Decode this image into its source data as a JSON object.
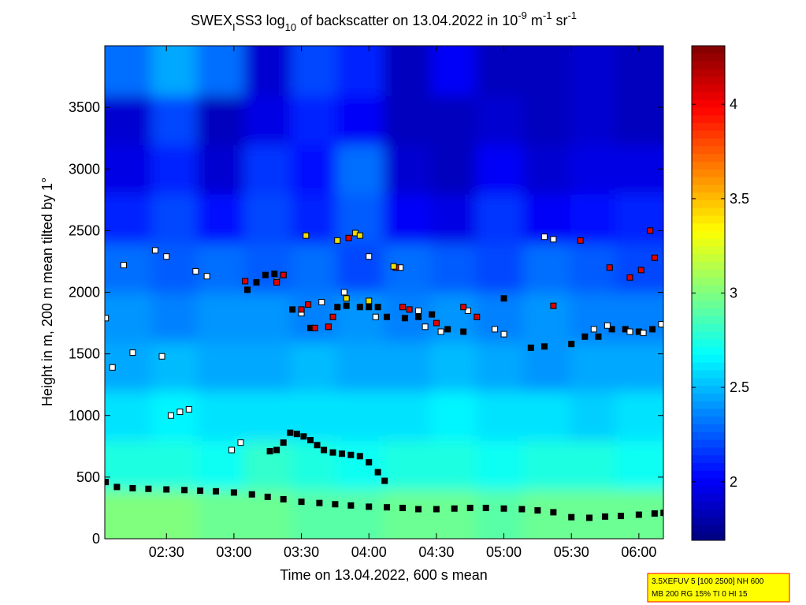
{
  "chart_data": {
    "type": "heatmap",
    "title_parts": [
      "SWEX",
      "I",
      "SS3 log",
      "10",
      " of backscatter on 13.04.2022 in 10",
      "-9",
      " m",
      "-1",
      " sr",
      "-1"
    ],
    "x_label": "Time on 13.04.2022, 600 s mean",
    "y_label": "Height in m, 200 m mean tilted by 1°",
    "xlim": [
      122.6,
      370.9
    ],
    "xticks": [
      {
        "value": 150,
        "label": "02:30"
      },
      {
        "value": 180,
        "label": "03:00"
      },
      {
        "value": 210,
        "label": "03:30"
      },
      {
        "value": 240,
        "label": "04:00"
      },
      {
        "value": 270,
        "label": "04:30"
      },
      {
        "value": 300,
        "label": "05:00"
      },
      {
        "value": 330,
        "label": "05:30"
      },
      {
        "value": 360,
        "label": "06:00"
      }
    ],
    "ylim": [
      0,
      4000
    ],
    "yticks": [
      0,
      500,
      1000,
      1500,
      2000,
      2500,
      3000,
      3500
    ],
    "clim": [
      1.69,
      4.31
    ],
    "cticks": [
      2,
      2.5,
      3,
      3.5,
      4
    ],
    "heat_x": [
      133,
      154,
      174,
      195,
      216,
      236,
      257,
      278,
      298,
      319,
      340,
      360
    ],
    "heat_y": [
      200,
      600,
      1000,
      1400,
      1800,
      2200,
      2600,
      3000,
      3400,
      3800
    ],
    "z": [
      [
        3.0,
        3.0,
        2.95,
        2.95,
        2.9,
        2.9,
        2.95,
        2.95,
        2.9,
        2.95,
        2.95,
        2.95
      ],
      [
        2.75,
        2.75,
        2.7,
        2.8,
        2.75,
        2.7,
        2.75,
        2.75,
        2.7,
        2.75,
        2.75,
        2.7
      ],
      [
        2.6,
        2.65,
        2.6,
        2.6,
        2.6,
        2.6,
        2.6,
        2.65,
        2.6,
        2.6,
        2.55,
        2.6
      ],
      [
        2.45,
        2.5,
        2.45,
        2.45,
        2.5,
        2.45,
        2.45,
        2.5,
        2.45,
        2.4,
        2.45,
        2.45
      ],
      [
        2.4,
        2.35,
        2.4,
        2.4,
        2.35,
        2.4,
        2.35,
        2.4,
        2.35,
        2.4,
        2.35,
        2.35
      ],
      [
        2.3,
        2.25,
        2.3,
        2.25,
        2.3,
        2.2,
        2.3,
        2.25,
        2.2,
        2.3,
        2.25,
        2.2
      ],
      [
        2.1,
        2.2,
        2.05,
        2.2,
        2.1,
        2.25,
        2.0,
        1.95,
        2.15,
        2.0,
        2.05,
        2.1
      ],
      [
        1.95,
        2.1,
        1.9,
        2.15,
        2.05,
        2.3,
        1.9,
        1.85,
        2.0,
        1.9,
        1.95,
        1.95
      ],
      [
        1.9,
        2.2,
        1.85,
        1.95,
        2.1,
        2.0,
        1.85,
        1.85,
        1.9,
        1.85,
        1.9,
        1.85
      ],
      [
        2.3,
        2.45,
        2.3,
        1.9,
        2.2,
        2.1,
        1.85,
        2.0,
        1.85,
        1.85,
        1.9,
        1.85
      ]
    ],
    "series": [
      {
        "color": "#000000",
        "x": [
          123,
          128,
          135,
          142,
          150,
          158,
          165,
          172,
          180,
          188,
          195,
          202,
          210,
          218,
          225,
          232,
          240,
          248,
          255,
          262,
          270,
          278,
          285,
          292,
          300,
          308,
          315,
          322,
          330,
          338,
          345,
          352,
          360,
          367,
          371
        ],
        "values": [
          460,
          420,
          410,
          405,
          400,
          395,
          390,
          385,
          375,
          360,
          340,
          320,
          300,
          290,
          280,
          270,
          260,
          255,
          250,
          240,
          240,
          245,
          250,
          250,
          245,
          240,
          230,
          215,
          175,
          170,
          180,
          185,
          195,
          205,
          210
        ]
      },
      {
        "color": "#000000",
        "x": [
          196,
          199,
          202,
          205,
          208,
          211,
          214,
          217,
          220,
          224,
          228,
          232,
          236,
          240,
          244,
          247
        ],
        "values": [
          710,
          720,
          780,
          860,
          850,
          830,
          800,
          760,
          720,
          700,
          690,
          680,
          670,
          620,
          540,
          470
        ]
      },
      {
        "color": "#000000",
        "x": [
          186,
          190,
          194,
          198,
          202,
          206,
          214,
          222,
          226,
          230,
          236,
          240,
          244,
          248,
          256,
          262,
          268,
          275,
          282,
          300,
          312,
          318,
          330,
          336,
          342,
          348,
          354,
          360,
          366,
          371
        ],
        "values": [
          2020,
          2080,
          2140,
          2150,
          2140,
          1860,
          1710,
          1720,
          1880,
          1890,
          1880,
          1880,
          1880,
          1800,
          1790,
          1800,
          1820,
          1700,
          1680,
          1950,
          1550,
          1560,
          1580,
          1640,
          1640,
          1700,
          1700,
          1680,
          1700,
          1740
        ]
      },
      {
        "color": "#ffffff",
        "x": [
          123,
          126,
          131,
          135,
          145,
          148,
          150,
          152,
          156,
          160,
          163,
          168,
          179,
          183,
          199,
          210,
          219,
          229,
          240,
          243,
          254,
          262,
          265,
          272,
          284,
          296,
          300,
          318,
          322,
          340,
          346,
          356,
          362,
          370
        ],
        "values": [
          1790,
          1390,
          2220,
          1510,
          2340,
          1480,
          2290,
          1000,
          1030,
          1050,
          2170,
          2130,
          720,
          780,
          2090,
          1830,
          1920,
          2000,
          2290,
          1800,
          2200,
          1850,
          1720,
          1680,
          1850,
          1700,
          1660,
          2450,
          2430,
          1700,
          1730,
          1680,
          1670,
          1740
        ]
      },
      {
        "color": "#e00000",
        "x": [
          185,
          199,
          202,
          210,
          213,
          216,
          222,
          224,
          231,
          252,
          255,
          258,
          270,
          282,
          288,
          322,
          334,
          347,
          356,
          361,
          365,
          367
        ],
        "values": [
          2090,
          2080,
          2140,
          1860,
          1900,
          1710,
          1720,
          1800,
          2440,
          2200,
          1880,
          1860,
          1750,
          1880,
          1800,
          1890,
          2420,
          2200,
          2120,
          2180,
          2500,
          2280
        ]
      },
      {
        "color": "#f0e000",
        "x": [
          212,
          226,
          230,
          234,
          236,
          240,
          251
        ],
        "values": [
          2460,
          2420,
          1950,
          2480,
          2460,
          1930,
          2210
        ]
      }
    ],
    "footnote_lines": [
      "3.5XEFUV 5 [100 2500] NH 600",
      "MB 200 RG 15% TI 0 HI 15"
    ]
  }
}
